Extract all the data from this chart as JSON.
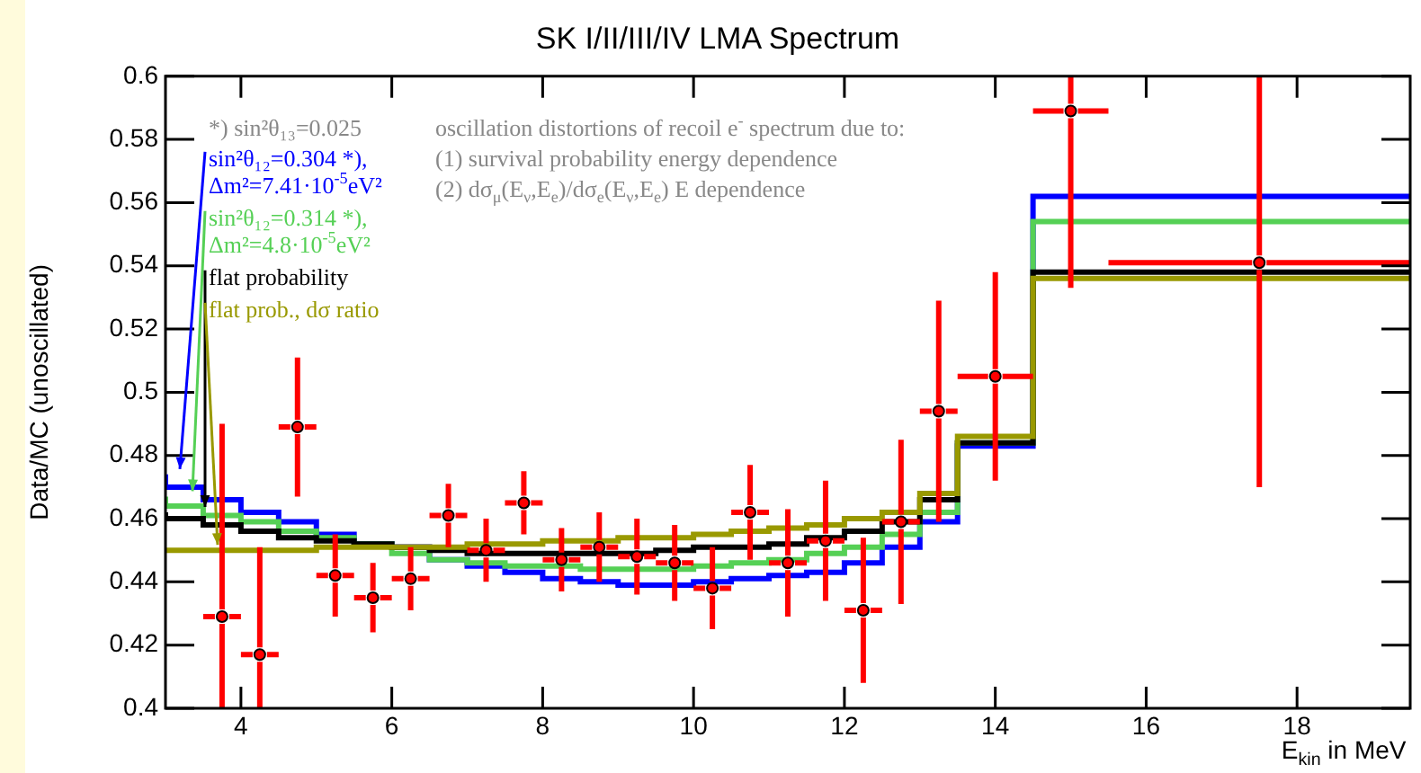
{
  "chart_data": {
    "type": "step",
    "title": "SK I/II/III/IV LMA Spectrum",
    "xlabel": "E$_{kin}$ in MeV",
    "ylabel": "Data/MC (unoscillated)",
    "xlim": [
      3,
      19.5
    ],
    "xticks": [
      4,
      6,
      8,
      10,
      12,
      14,
      16,
      18
    ],
    "ylim": [
      0.4,
      0.6
    ],
    "yticks": [
      0.4,
      0.42,
      0.44,
      0.46,
      0.48,
      0.5,
      0.52,
      0.54,
      0.56,
      0.58,
      0.6
    ],
    "grid": false,
    "legend": "top left",
    "marker": "none",
    "annotations": [
      "*) sin²θ₁₃=0.025",
      "oscillation distortions of recoil e$^{-}$ spectrum due to:",
      "(1) survival probability energy dependence",
      "(2) dσ$_{μ}$(E$_{ν}$,E$_{e}$)/dσ$_{e}$(E$_{ν}$,E$_{e}$) E dependence"
    ],
    "series": [
      {
        "name": "sin²θ₁₂=0.304 *),\nΔm²=7.41·10$^{-5}$eV²",
        "color": "#0000ff",
        "x": [
          3,
          3.5,
          4,
          4.5,
          5,
          5.5,
          6,
          6.5,
          7,
          7.5,
          8,
          8.5,
          9,
          9.5,
          10,
          10.5,
          11,
          11.5,
          12,
          12.5,
          13,
          13.5,
          14.5,
          15.5,
          19.5
        ],
        "values": [
          0.474,
          0.47,
          0.466,
          0.462,
          0.459,
          0.455,
          0.452,
          0.451,
          0.447,
          0.445,
          0.443,
          0.441,
          0.44,
          0.439,
          0.439,
          0.44,
          0.441,
          0.442,
          0.443,
          0.446,
          0.451,
          0.459,
          0.483,
          0.562,
          0.562
        ]
      },
      {
        "name": "sin²θ₁₂=0.314 *),\nΔm²=4.8·10$^{-5}$eV²",
        "color": "#55d055",
        "x": [
          3,
          3.5,
          4,
          4.5,
          5,
          5.5,
          6,
          6.5,
          7,
          7.5,
          8,
          8.5,
          9,
          9.5,
          10,
          10.5,
          11,
          11.5,
          12,
          12.5,
          13,
          13.5,
          14.5,
          15.5,
          19.5
        ],
        "values": [
          0.467,
          0.464,
          0.461,
          0.459,
          0.456,
          0.454,
          0.452,
          0.449,
          0.447,
          0.446,
          0.445,
          0.445,
          0.444,
          0.444,
          0.444,
          0.445,
          0.446,
          0.447,
          0.449,
          0.451,
          0.455,
          0.462,
          0.484,
          0.554,
          0.554
        ]
      },
      {
        "name": "flat probability",
        "color": "#000000",
        "x": [
          3,
          3.5,
          4,
          4.5,
          5,
          5.5,
          6,
          6.5,
          7,
          7.5,
          8,
          8.5,
          9,
          9.5,
          10,
          10.5,
          11,
          11.5,
          12,
          12.5,
          13,
          13.5,
          14.5,
          15.5,
          19.5
        ],
        "values": [
          0.462,
          0.46,
          0.458,
          0.456,
          0.454,
          0.453,
          0.452,
          0.451,
          0.45,
          0.449,
          0.449,
          0.449,
          0.449,
          0.449,
          0.45,
          0.451,
          0.451,
          0.452,
          0.454,
          0.456,
          0.459,
          0.466,
          0.484,
          0.538,
          0.538
        ]
      },
      {
        "name": "flat prob., dσ ratio",
        "color": "#999900",
        "x": [
          3,
          3.5,
          4,
          4.5,
          5,
          5.5,
          6,
          6.5,
          7,
          7.5,
          8,
          8.5,
          9,
          9.5,
          10,
          10.5,
          11,
          11.5,
          12,
          12.5,
          13,
          13.5,
          14.5,
          15.5,
          19.5
        ],
        "values": [
          0.45,
          0.45,
          0.45,
          0.45,
          0.45,
          0.451,
          0.451,
          0.451,
          0.451,
          0.452,
          0.452,
          0.453,
          0.453,
          0.454,
          0.454,
          0.455,
          0.456,
          0.457,
          0.458,
          0.46,
          0.462,
          0.468,
          0.486,
          0.536,
          0.536
        ]
      },
      {
        "type": "scatter",
        "marker": "circle",
        "color": "#ff0000",
        "x": [
          3.75,
          4.25,
          4.75,
          5.25,
          5.75,
          6.25,
          6.75,
          7.25,
          7.75,
          8.25,
          8.75,
          9.25,
          9.75,
          10.25,
          10.75,
          11.25,
          11.75,
          12.25,
          12.75,
          13.25,
          14,
          15,
          17.5
        ],
        "values": [
          0.429,
          0.417,
          0.489,
          0.442,
          0.435,
          0.441,
          0.461,
          0.45,
          0.465,
          0.447,
          0.451,
          0.448,
          0.446,
          0.438,
          0.462,
          0.446,
          0.453,
          0.431,
          0.459,
          0.494,
          0.505,
          0.589,
          0.541
        ],
        "errors": [
          [
            0.4,
            0.49
          ],
          [
            0.4,
            0.451
          ],
          0.022,
          0.013,
          0.011,
          0.01,
          0.01,
          0.01,
          0.01,
          0.01,
          0.011,
          0.012,
          0.012,
          0.013,
          0.015,
          0.017,
          0.019,
          0.023,
          0.026,
          0.035,
          0.033,
          [
            0.533,
            0.6
          ],
          [
            0.47,
            0.6
          ]
        ],
        "xerrors": [
          0.25,
          0.25,
          0.25,
          0.25,
          0.25,
          0.25,
          0.25,
          0.25,
          0.25,
          0.25,
          0.25,
          0.25,
          0.25,
          0.25,
          0.25,
          0.25,
          0.25,
          0.25,
          0.25,
          0.25,
          0.5,
          0.5,
          2
        ]
      }
    ]
  }
}
